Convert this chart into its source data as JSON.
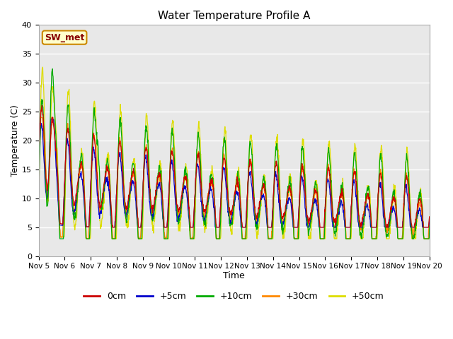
{
  "title": "Water Temperature Profile A",
  "xlabel": "Time",
  "ylabel": "Temperature (C)",
  "ylim": [
    0,
    40
  ],
  "yticks": [
    0,
    5,
    10,
    15,
    20,
    25,
    30,
    35,
    40
  ],
  "xtick_labels": [
    "Nov 5",
    "Nov 6",
    "Nov 7",
    "Nov 8",
    "Nov 9",
    "Nov 10",
    "Nov 11",
    "Nov 12",
    "Nov 13",
    "Nov 14",
    "Nov 15",
    "Nov 16",
    "Nov 17",
    "Nov 18",
    "Nov 19",
    "Nov 20"
  ],
  "series_colors": [
    "#cc0000",
    "#0000cc",
    "#00aa00",
    "#ff8800",
    "#dddd00"
  ],
  "series_labels": [
    "0cm",
    "+5cm",
    "+10cm",
    "+30cm",
    "+50cm"
  ],
  "annotation_text": "SW_met",
  "annotation_color": "#880000",
  "annotation_bg": "#ffffcc",
  "annotation_border": "#cc8800",
  "background_color": "#e8e8e8",
  "grid_color": "#ffffff",
  "n_points": 1440
}
